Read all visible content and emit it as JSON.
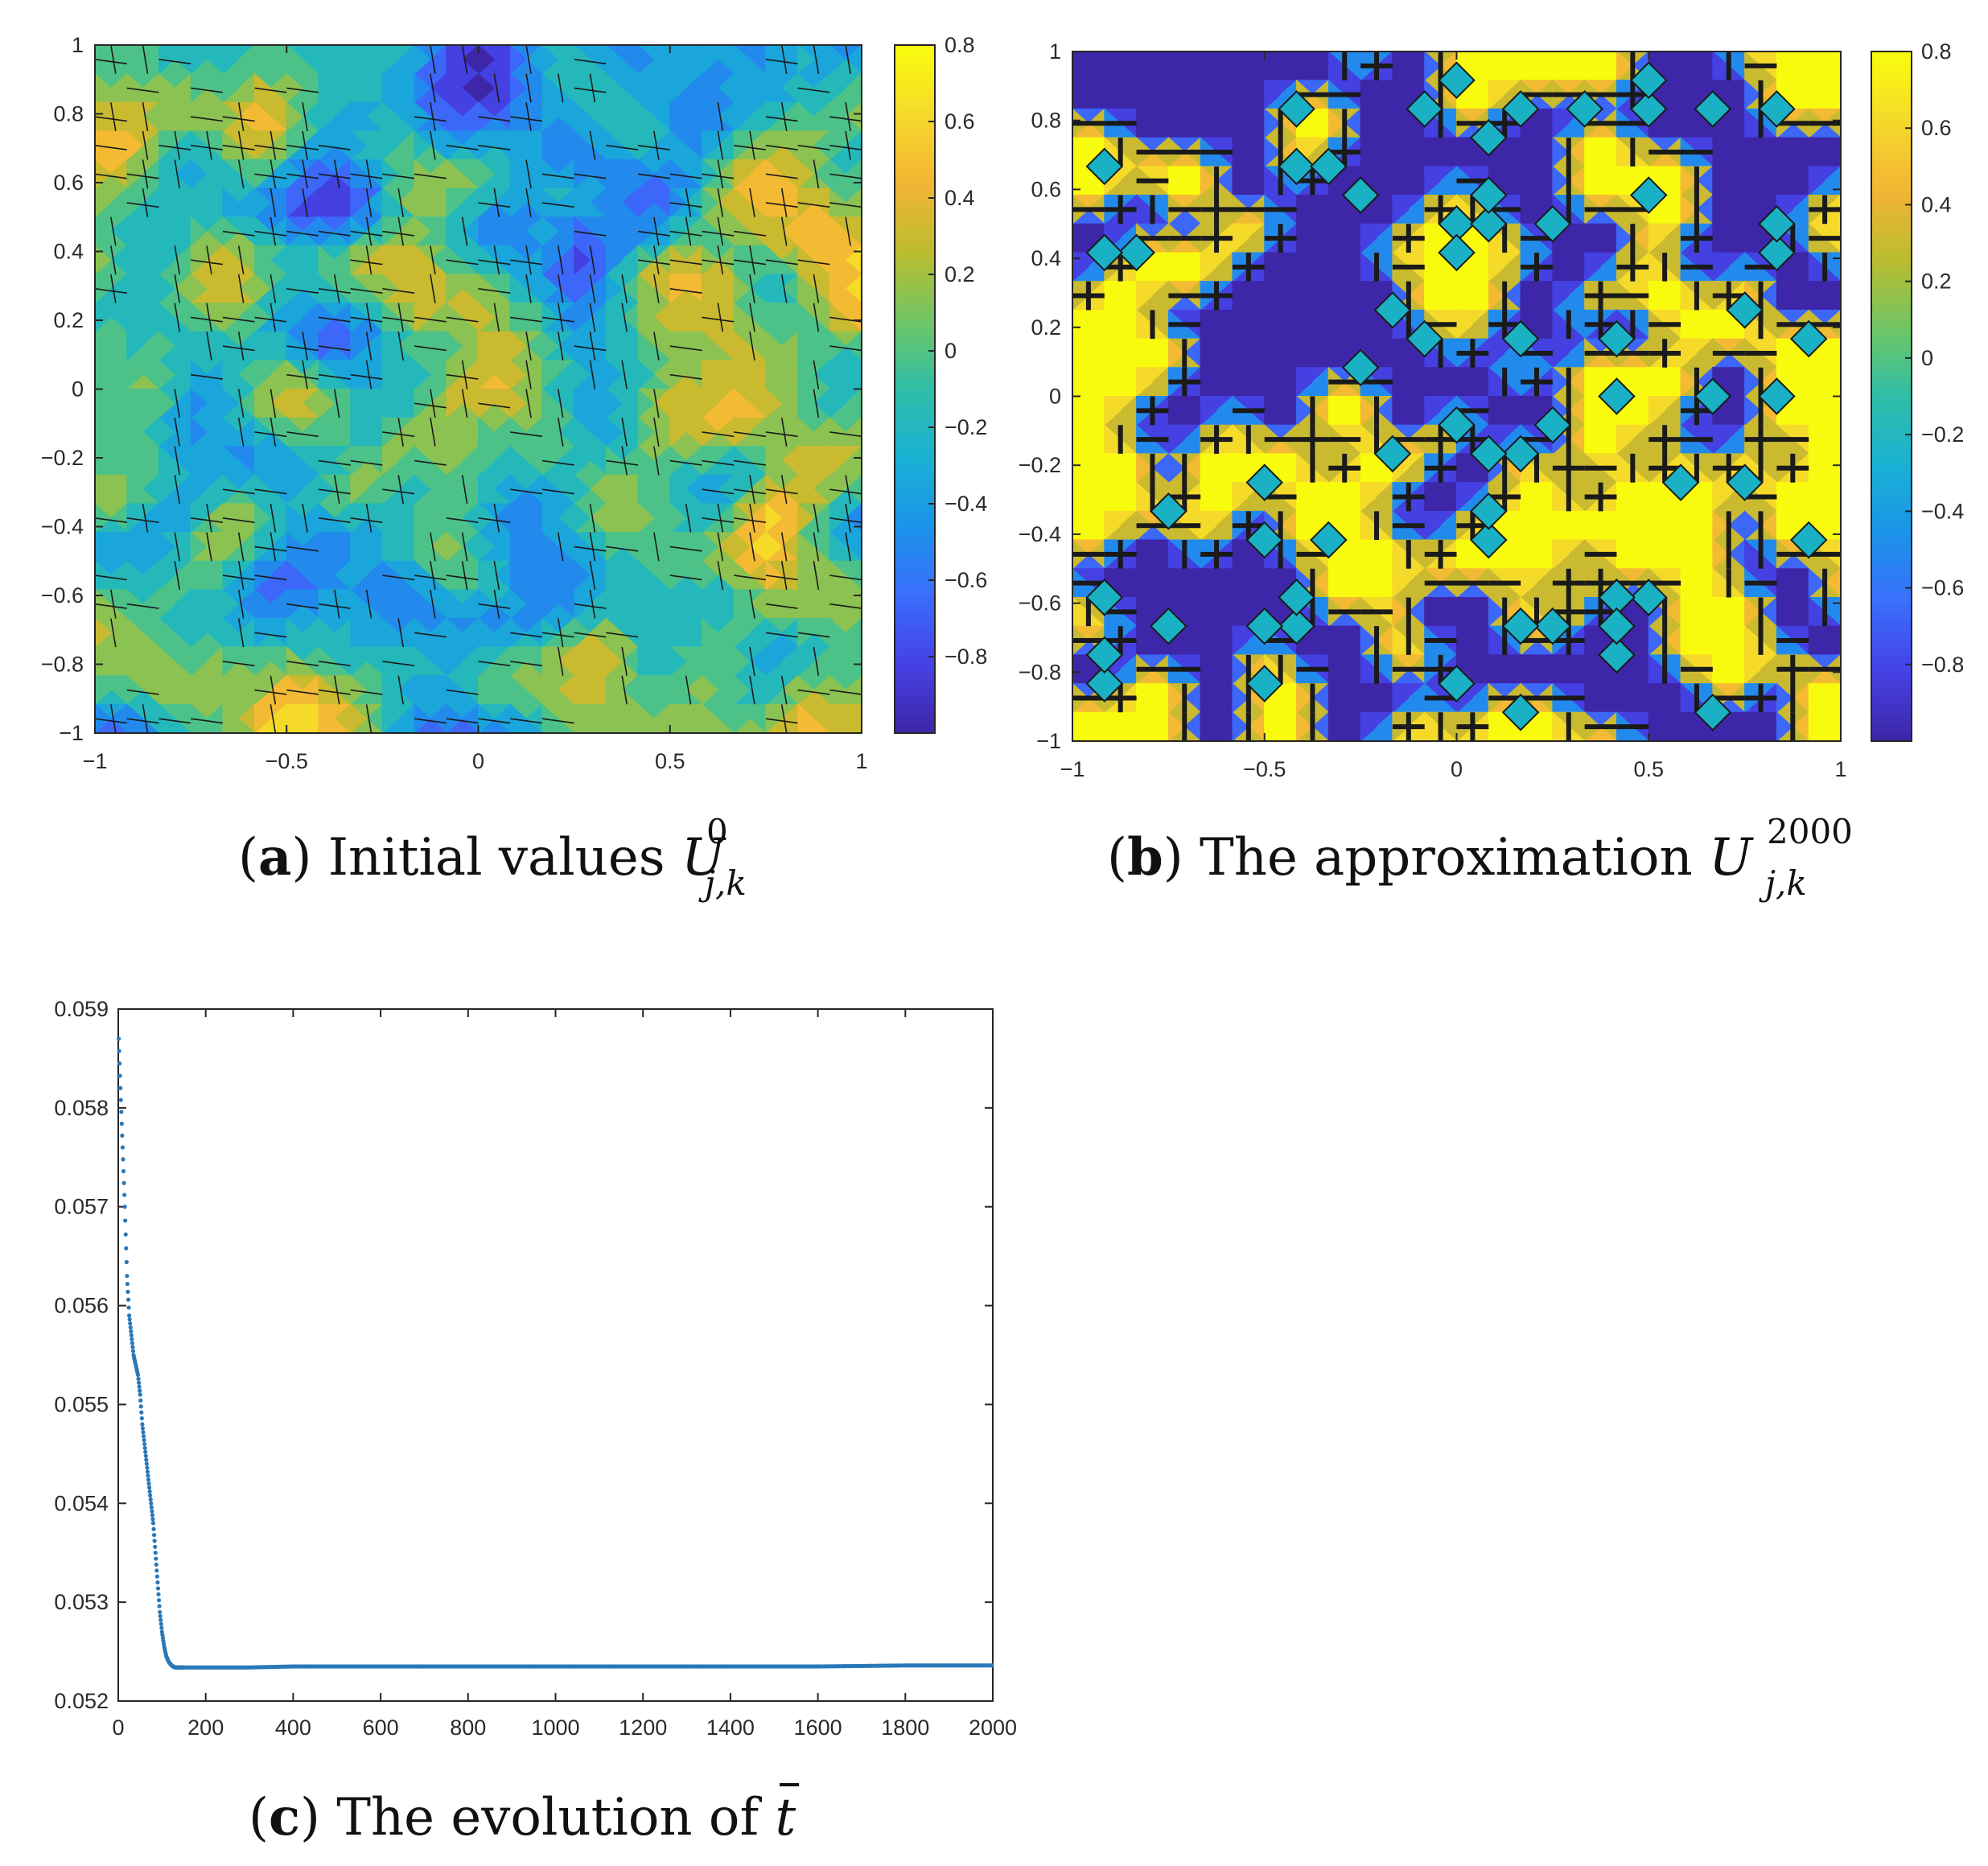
{
  "chart_data": [
    {
      "id": "a",
      "type": "heatmap",
      "subtype": "filled-contour",
      "caption": {
        "letter": "a",
        "text": "Initial values",
        "symbol": "U",
        "subscript": "j,k",
        "superscript": "0"
      },
      "xlim": [
        -1,
        1
      ],
      "ylim": [
        -1,
        1
      ],
      "x_ticks": [
        "−1",
        "−0.5",
        "0",
        "0.5",
        "1"
      ],
      "y_ticks": [
        "1",
        "0.8",
        "0.6",
        "0.4",
        "0.2",
        "0",
        "−0.2",
        "−0.4",
        "−0.6",
        "−0.8",
        "−1"
      ],
      "colorbar": {
        "range": [
          -1,
          0.8
        ],
        "ticks": [
          "0.8",
          "0.6",
          "0.4",
          "0.2",
          "0",
          "−0.2",
          "−0.4",
          "−0.6",
          "−0.8"
        ],
        "colormap": [
          "#3e26a8",
          "#4543e8",
          "#3a6ffc",
          "#1a94e8",
          "#1ab1d4",
          "#2ebea6",
          "#6fc666",
          "#bbbc2e",
          "#f2b434",
          "#f5d72c",
          "#f9fb0e"
        ]
      },
      "grid_size": 25,
      "seed": 17
    },
    {
      "id": "b",
      "type": "heatmap",
      "subtype": "filled-contour",
      "caption": {
        "letter": "b",
        "text": "The approximation",
        "symbol": "U",
        "subscript": "j,k",
        "superscript": "2000"
      },
      "xlim": [
        -1,
        1
      ],
      "ylim": [
        -1,
        1
      ],
      "x_ticks": [
        "−1",
        "−0.5",
        "0",
        "0.5",
        "1"
      ],
      "y_ticks": [
        "1",
        "0.8",
        "0.6",
        "0.4",
        "0.2",
        "0",
        "−0.2",
        "−0.4",
        "−0.6",
        "−0.8",
        "−1"
      ],
      "colorbar": {
        "range": [
          -1,
          0.8
        ],
        "ticks": [
          "0.8",
          "0.6",
          "0.4",
          "0.2",
          "0",
          "−0.2",
          "−0.4",
          "−0.6",
          "−0.8"
        ],
        "colormap": [
          "#3e26a8",
          "#4543e8",
          "#3a6ffc",
          "#1a94e8",
          "#1ab1d4",
          "#2ebea6",
          "#6fc666",
          "#bbbc2e",
          "#f2b434",
          "#f5d72c",
          "#f9fb0e"
        ]
      },
      "grid_size": 25,
      "seed": 91,
      "level_values": [
        -1,
        0.8
      ],
      "interface_value": -0.1
    },
    {
      "id": "c",
      "type": "scatter",
      "caption": {
        "letter": "c",
        "text": "The evolution of",
        "symbol": "t"
      },
      "xlim": [
        0,
        2000
      ],
      "ylim": [
        0.052,
        0.059
      ],
      "x_ticks": [
        "0",
        "200",
        "400",
        "600",
        "800",
        "1000",
        "1200",
        "1400",
        "1600",
        "1800",
        "2000"
      ],
      "y_ticks": [
        "0.059",
        "0.058",
        "0.057",
        "0.056",
        "0.055",
        "0.054",
        "0.053",
        "0.052"
      ],
      "marker_color": "#2a78b8",
      "series": [
        {
          "name": "t-bar",
          "x": [
            1,
            5,
            10,
            15,
            20,
            25,
            30,
            35,
            40,
            45,
            50,
            55,
            60,
            65,
            70,
            75,
            80,
            85,
            90,
            95,
            100,
            105,
            110,
            115,
            120,
            125,
            130,
            140,
            150,
            175,
            200,
            300,
            400,
            600,
            800,
            1000,
            1200,
            1400,
            1600,
            1800,
            2000
          ],
          "y": [
            0.0587,
            0.0582,
            0.0576,
            0.057,
            0.0563,
            0.0559,
            0.0557,
            0.0555,
            0.0554,
            0.0553,
            0.0551,
            0.0548,
            0.0546,
            0.0544,
            0.0542,
            0.054,
            0.0538,
            0.0535,
            0.0532,
            0.0529,
            0.0527,
            0.05255,
            0.05245,
            0.0524,
            0.05237,
            0.05235,
            0.05234,
            0.05234,
            0.05234,
            0.05234,
            0.05234,
            0.05234,
            0.05235,
            0.05235,
            0.05235,
            0.05235,
            0.05235,
            0.05235,
            0.05235,
            0.05236,
            0.05236
          ]
        }
      ]
    }
  ]
}
